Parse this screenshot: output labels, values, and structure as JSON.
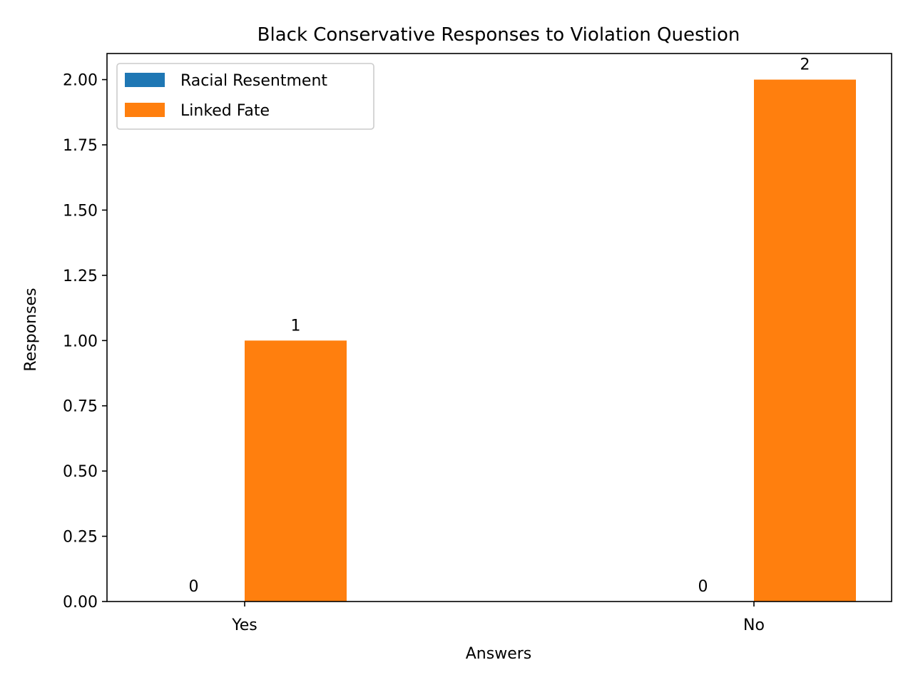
{
  "chart_data": {
    "type": "bar",
    "title": "Black Conservative Responses to Violation Question",
    "xlabel": "Answers",
    "ylabel": "Responses",
    "categories": [
      "Yes",
      "No"
    ],
    "series": [
      {
        "name": "Racial Resentment",
        "values": [
          0,
          0
        ],
        "color": "#1f77b4"
      },
      {
        "name": "Linked Fate",
        "values": [
          1,
          2
        ],
        "color": "#ff7f0e"
      }
    ],
    "ylim": [
      0,
      2.1
    ],
    "yticks": [
      "0.00",
      "0.25",
      "0.50",
      "0.75",
      "1.00",
      "1.25",
      "1.50",
      "1.75",
      "2.00"
    ],
    "ytick_values": [
      0,
      0.25,
      0.5,
      0.75,
      1.0,
      1.25,
      1.5,
      1.75,
      2.0
    ],
    "data_labels": [
      [
        "0",
        "0"
      ],
      [
        "1",
        "2"
      ]
    ],
    "legend_position": "upper-left",
    "grid": false
  }
}
